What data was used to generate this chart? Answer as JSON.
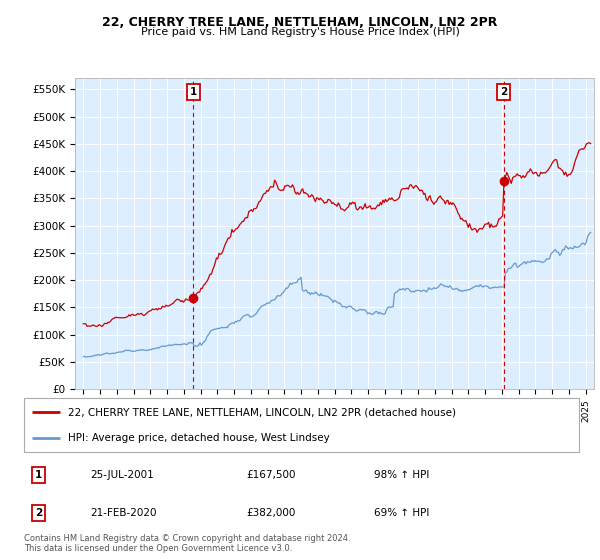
{
  "title": "22, CHERRY TREE LANE, NETTLEHAM, LINCOLN, LN2 2PR",
  "subtitle": "Price paid vs. HM Land Registry's House Price Index (HPI)",
  "ylim": [
    0,
    570000
  ],
  "yticks": [
    0,
    50000,
    100000,
    150000,
    200000,
    250000,
    300000,
    350000,
    400000,
    450000,
    500000,
    550000
  ],
  "ytick_labels": [
    "£0",
    "£50K",
    "£100K",
    "£150K",
    "£200K",
    "£250K",
    "£300K",
    "£350K",
    "£400K",
    "£450K",
    "£500K",
    "£550K"
  ],
  "xlim_start": 1994.5,
  "xlim_end": 2025.5,
  "sale1_year": 2001.56,
  "sale1_price": 167500,
  "sale1_label": "1",
  "sale2_year": 2020.12,
  "sale2_price": 382000,
  "sale2_label": "2",
  "hpi_color": "#6699cc",
  "price_color": "#cc0000",
  "vline_color": "#cc0000",
  "bg_color": "#ddeeff",
  "legend_line1": "22, CHERRY TREE LANE, NETTLEHAM, LINCOLN, LN2 2PR (detached house)",
  "legend_line2": "HPI: Average price, detached house, West Lindsey",
  "footer": "Contains HM Land Registry data © Crown copyright and database right 2024.\nThis data is licensed under the Open Government Licence v3.0.",
  "table_row1": [
    "1",
    "25-JUL-2001",
    "£167,500",
    "98% ↑ HPI"
  ],
  "table_row2": [
    "2",
    "21-FEB-2020",
    "£382,000",
    "69% ↑ HPI"
  ]
}
